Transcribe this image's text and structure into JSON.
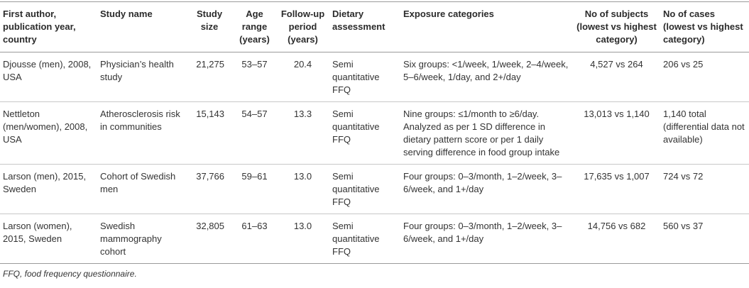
{
  "table": {
    "headers": [
      "First author, publication year, country",
      "Study name",
      "Study size",
      "Age range (years)",
      "Follow-up period (years)",
      "Dietary assessment",
      "Exposure categories",
      "No of subjects (lowest vs highest category)",
      "No of cases (lowest vs highest category)"
    ],
    "rows": [
      [
        "Djousse (men), 2008, USA",
        "Physician’s health study",
        "21,275",
        "53–57",
        "20.4",
        "Semi quantitative FFQ",
        "Six groups: <1/week, 1/week, 2–4/week, 5–6/week, 1/day, and 2+/day",
        "4,527 vs 264",
        "206 vs 25"
      ],
      [
        "Nettleton (men/women), 2008, USA",
        "Atherosclerosis risk in communities",
        "15,143",
        "54–57",
        "13.3",
        "Semi quantitative FFQ",
        "Nine groups: ≤1/month to ≥6/day. Analyzed as per 1 SD difference in dietary pattern score or per 1 daily serving difference in food group intake",
        "13,013 vs 1,140",
        "1,140 total (differential data not available)"
      ],
      [
        "Larson (men), 2015, Sweden",
        "Cohort of Swedish men",
        "37,766",
        "59–61",
        "13.0",
        "Semi quantitative FFQ",
        "Four groups: 0–3/month, 1–2/week, 3–6/week, and 1+/day",
        "17,635 vs 1,007",
        "724 vs 72"
      ],
      [
        "Larson (women), 2015, Sweden",
        "Swedish mammography cohort",
        "32,805",
        "61–63",
        "13.0",
        "Semi quantitative FFQ",
        "Four groups: 0–3/month, 1–2/week, 3–6/week, and 1+/day",
        "14,756 vs 682",
        "560 vs 37"
      ]
    ]
  },
  "footnote": "FFQ, food frequency questionnaire."
}
